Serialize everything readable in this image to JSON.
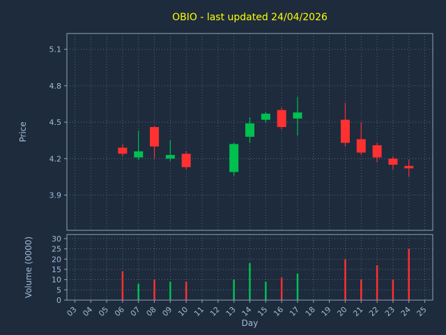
{
  "chart_data": {
    "type": "candlestick",
    "title": "OBIO - last updated 24/04/2026",
    "xlabel": "Day",
    "ylabel_price": "Price",
    "ylabel_volume": "Volume (0000)",
    "x_ticks": [
      "03",
      "04",
      "05",
      "06",
      "07",
      "08",
      "09",
      "10",
      "11",
      "12",
      "13",
      "14",
      "15",
      "16",
      "17",
      "18",
      "19",
      "20",
      "21",
      "22",
      "23",
      "24",
      "25"
    ],
    "xlim": [
      2.5,
      25.5
    ],
    "price_yticks": [
      3.9,
      4.2,
      4.5,
      4.8,
      5.1
    ],
    "price_ylim": [
      3.61,
      5.23
    ],
    "volume_yticks": [
      0,
      5,
      10,
      15,
      20,
      25,
      30
    ],
    "volume_ylim": [
      0,
      32
    ],
    "grid": true,
    "legend": "none",
    "candles": [
      {
        "day": 6,
        "open": 4.29,
        "high": 4.32,
        "low": 4.22,
        "close": 4.24,
        "volume": 14
      },
      {
        "day": 7,
        "open": 4.21,
        "high": 4.43,
        "low": 4.19,
        "close": 4.26,
        "volume": 8
      },
      {
        "day": 8,
        "open": 4.46,
        "high": 4.47,
        "low": 4.2,
        "close": 4.3,
        "volume": 10
      },
      {
        "day": 9,
        "open": 4.2,
        "high": 4.35,
        "low": 4.18,
        "close": 4.23,
        "volume": 9
      },
      {
        "day": 10,
        "open": 4.24,
        "high": 4.26,
        "low": 4.11,
        "close": 4.13,
        "volume": 9
      },
      {
        "day": 13,
        "open": 4.09,
        "high": 4.33,
        "low": 4.06,
        "close": 4.32,
        "volume": 10
      },
      {
        "day": 14,
        "open": 4.38,
        "high": 4.54,
        "low": 4.33,
        "close": 4.49,
        "volume": 18
      },
      {
        "day": 15,
        "open": 4.52,
        "high": 4.58,
        "low": 4.5,
        "close": 4.57,
        "volume": 9
      },
      {
        "day": 16,
        "open": 4.6,
        "high": 4.62,
        "low": 4.44,
        "close": 4.46,
        "volume": 11
      },
      {
        "day": 17,
        "open": 4.53,
        "high": 4.71,
        "low": 4.39,
        "close": 4.58,
        "volume": 13
      },
      {
        "day": 20,
        "open": 4.52,
        "high": 4.66,
        "low": 4.3,
        "close": 4.33,
        "volume": 20
      },
      {
        "day": 21,
        "open": 4.36,
        "high": 4.5,
        "low": 4.23,
        "close": 4.25,
        "volume": 10
      },
      {
        "day": 22,
        "open": 4.31,
        "high": 4.33,
        "low": 4.17,
        "close": 4.21,
        "volume": 17
      },
      {
        "day": 23,
        "open": 4.2,
        "high": 4.22,
        "low": 4.11,
        "close": 4.15,
        "volume": 10
      },
      {
        "day": 24,
        "open": 4.14,
        "high": 4.19,
        "low": 4.05,
        "close": 4.12,
        "volume": 25
      }
    ],
    "colors": {
      "background": "#1d2b3d",
      "up": "#00c050",
      "down": "#ff3030",
      "title": "#ffff00",
      "label": "#a3bdd6",
      "tick": "#a3bdd6",
      "grid": "#9fb4c8",
      "spine": "#8fa6bc"
    }
  }
}
